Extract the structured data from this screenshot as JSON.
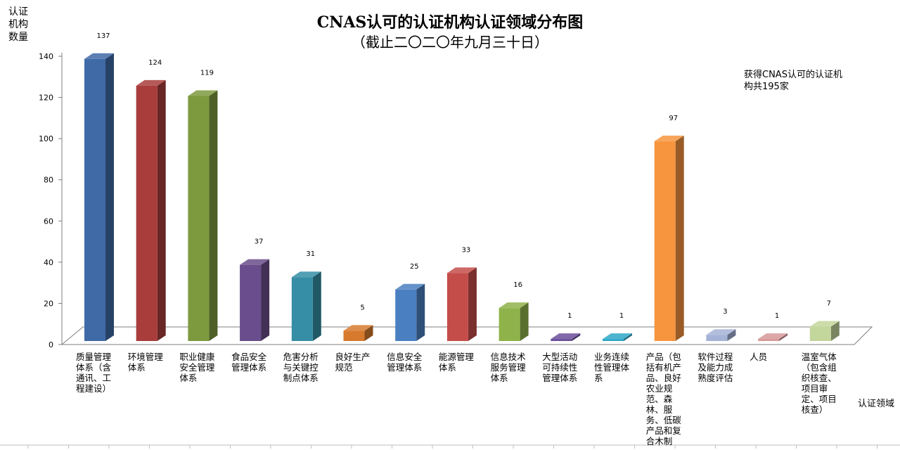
{
  "chart_data": {
    "type": "bar",
    "title": "CNAS认可的认证机构认证领域分布图",
    "subtitle": "（截止二〇二〇年九月三十日）",
    "ylabel": "认证机构数量",
    "xlabel": "认证领域",
    "annotation": "获得CNAS认可的认证机构共195家",
    "ylim": [
      0,
      140
    ],
    "yticks": [
      0,
      20,
      40,
      60,
      80,
      100,
      120,
      140
    ],
    "grid": false,
    "style": "3d",
    "categories": [
      "质量管理体系（含通讯、工程建设）",
      "环境管理体系",
      "职业健康安全管理体系",
      "食品安全管理体系",
      "危害分析与关键控制点体系",
      "良好生产规范",
      "信息安全管理体系",
      "能源管理体系",
      "信息技术服务管理体系",
      "大型活动可持续性管理体系",
      "业务连续性管理体系",
      "产品（包括有机产品、良好农业规范、森林、服务、低碳产品和复合木制",
      "软件过程及能力成熟度评估",
      "人员",
      "温室气体（包含组织核查、项目审定、项目核查）"
    ],
    "values": [
      137,
      124,
      119,
      37,
      31,
      5,
      25,
      33,
      16,
      1,
      1,
      97,
      3,
      1,
      7
    ],
    "colors": [
      "#3f6aa6",
      "#a83d3b",
      "#7d9a3f",
      "#6a4d8c",
      "#358ea5",
      "#d77a2d",
      "#4a7fc1",
      "#c44d4a",
      "#8fb34a",
      "#6b4f9a",
      "#2ea8c6",
      "#f7953e",
      "#a5b2d7",
      "#d69998",
      "#c3d69b"
    ]
  }
}
